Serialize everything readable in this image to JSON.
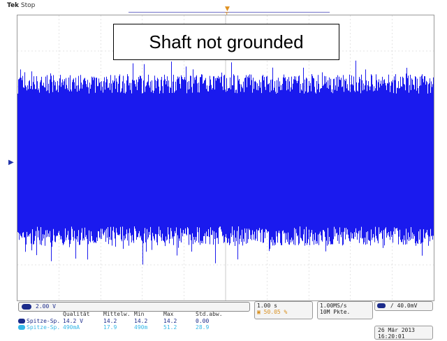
{
  "header": {
    "brand": "Tek",
    "state": "Stop"
  },
  "annotation": "Shaft not grounded",
  "channel": {
    "marker": "1",
    "scale": "2.00 V"
  },
  "measurements": {
    "headers": [
      "Qualität",
      "Mittelw.",
      "Min",
      "Max",
      "Std.abw."
    ],
    "rows": [
      {
        "label": "Spitze-Sp.",
        "quality": "14.2 V",
        "mean": "14.2",
        "min": "14.2",
        "max": "14.2",
        "std": "0.00"
      },
      {
        "label": "Spitze-Sp.",
        "quality": "490mA",
        "mean": "17.9",
        "min": "490m",
        "max": "51.2",
        "std": "28.9"
      }
    ]
  },
  "timebase": {
    "scale": "1.00 s",
    "position": "50.05 %"
  },
  "acquisition": {
    "rate": "1.00MS/s",
    "points": "10M Pkte."
  },
  "trigger": {
    "slope": "/",
    "level": "40.0mV"
  },
  "datetime": {
    "date": "26 Mär 2013",
    "time": "16:20:01"
  },
  "colors": {
    "trace": "#1a1aee",
    "channel1": "#1b2b8a",
    "channel2": "#35b8e8",
    "grid": "#c8c8c8"
  }
}
